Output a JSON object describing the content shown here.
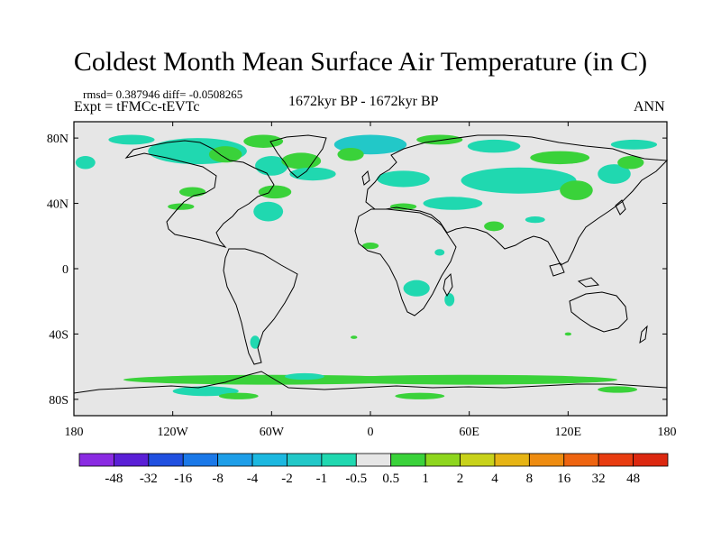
{
  "chart_data": {
    "type": "heatmap",
    "title": "Coldest Month Mean Surface Air Temperature (in C)",
    "stats_text": "rmsd= 0.387946  diff= -0.0508265",
    "experiment_text": "Expt = tFMCc-tEVTc",
    "period_text": "1672kyr BP - 1672kyr BP",
    "season_text": "ANN",
    "x_tick_labels": [
      "180",
      "120W",
      "60W",
      "0",
      "60E",
      "120E",
      "180"
    ],
    "y_tick_labels": [
      "80N",
      "40N",
      "0",
      "40S",
      "80S"
    ],
    "xlim": [
      -180,
      180
    ],
    "ylim": [
      -90,
      90
    ],
    "colorbar": {
      "levels": [
        "-48",
        "-32",
        "-16",
        "-8",
        "-4",
        "-2",
        "-1",
        "-0.5",
        "0.5",
        "1",
        "2",
        "4",
        "8",
        "16",
        "32",
        "48"
      ],
      "colors": [
        "#8a2be2",
        "#5a1fd6",
        "#2050e0",
        "#1a78e8",
        "#1e9ee8",
        "#1cb8e0",
        "#22c8c8",
        "#20d8b0",
        "#e6e6e6",
        "#3ad23a",
        "#8ed61e",
        "#c8d21a",
        "#e6b414",
        "#ee8c10",
        "#ee6410",
        "#e83c10",
        "#dc2810"
      ]
    },
    "anomaly_regions": [
      {
        "lon": -105,
        "lat": 72,
        "rlon": 30,
        "rlat": 8,
        "cls": -0.75
      },
      {
        "lon": -145,
        "lat": 79,
        "rlon": 14,
        "rlat": 3,
        "cls": -0.75
      },
      {
        "lon": -65,
        "lat": 78,
        "rlon": 12,
        "rlat": 4,
        "cls": 0.75
      },
      {
        "lon": -88,
        "lat": 70,
        "rlon": 10,
        "rlat": 5,
        "cls": 0.75
      },
      {
        "lon": -60,
        "lat": 63,
        "rlon": 10,
        "rlat": 6,
        "cls": -0.75
      },
      {
        "lon": -42,
        "lat": 66,
        "rlon": 12,
        "rlat": 5,
        "cls": 0.75
      },
      {
        "lon": -35,
        "lat": 58,
        "rlon": 14,
        "rlat": 4,
        "cls": -0.75
      },
      {
        "lon": -58,
        "lat": 47,
        "rlon": 10,
        "rlat": 4,
        "cls": 0.75
      },
      {
        "lon": 0,
        "lat": 76,
        "rlon": 22,
        "rlat": 6,
        "cls": -1.5
      },
      {
        "lon": -12,
        "lat": 70,
        "rlon": 8,
        "rlat": 4,
        "cls": 0.75
      },
      {
        "lon": 42,
        "lat": 79,
        "rlon": 14,
        "rlat": 3,
        "cls": 0.75
      },
      {
        "lon": 75,
        "lat": 75,
        "rlon": 16,
        "rlat": 4,
        "cls": -0.75
      },
      {
        "lon": 90,
        "lat": 54,
        "rlon": 35,
        "rlat": 8,
        "cls": -0.75
      },
      {
        "lon": 20,
        "lat": 55,
        "rlon": 16,
        "rlat": 5,
        "cls": -0.75
      },
      {
        "lon": 115,
        "lat": 68,
        "rlon": 18,
        "rlat": 4,
        "cls": 0.75
      },
      {
        "lon": 160,
        "lat": 76,
        "rlon": 14,
        "rlat": 3,
        "cls": -0.75
      },
      {
        "lon": 148,
        "lat": 58,
        "rlon": 10,
        "rlat": 6,
        "cls": -0.75
      },
      {
        "lon": 158,
        "lat": 65,
        "rlon": 8,
        "rlat": 4,
        "cls": 0.75
      },
      {
        "lon": 125,
        "lat": 48,
        "rlon": 10,
        "rlat": 6,
        "cls": 0.75
      },
      {
        "lon": 50,
        "lat": 40,
        "rlon": 18,
        "rlat": 4,
        "cls": -0.75
      },
      {
        "lon": 20,
        "lat": 38,
        "rlon": 8,
        "rlat": 2,
        "cls": 0.75
      },
      {
        "lon": -108,
        "lat": 47,
        "rlon": 8,
        "rlat": 3,
        "cls": 0.75
      },
      {
        "lon": -115,
        "lat": 38,
        "rlon": 8,
        "rlat": 2,
        "cls": 0.75
      },
      {
        "lon": -62,
        "lat": 35,
        "rlon": 9,
        "rlat": 6,
        "cls": -0.75
      },
      {
        "lon": -173,
        "lat": 65,
        "rlon": 6,
        "rlat": 4,
        "cls": -0.75
      },
      {
        "lon": 0,
        "lat": 14,
        "rlon": 5,
        "rlat": 2,
        "cls": 0.75
      },
      {
        "lon": 75,
        "lat": 26,
        "rlon": 6,
        "rlat": 3,
        "cls": 0.75
      },
      {
        "lon": 100,
        "lat": 30,
        "rlon": 6,
        "rlat": 2,
        "cls": -0.75
      },
      {
        "lon": 28,
        "lat": -12,
        "rlon": 8,
        "rlat": 5,
        "cls": -0.75
      },
      {
        "lon": 42,
        "lat": 10,
        "rlon": 3,
        "rlat": 2,
        "cls": -0.75
      },
      {
        "lon": 48,
        "lat": -19,
        "rlon": 3,
        "rlat": 4,
        "cls": -0.75
      },
      {
        "lon": -70,
        "lat": -45,
        "rlon": 3,
        "rlat": 4,
        "cls": -0.75
      },
      {
        "lon": -10,
        "lat": -42,
        "rlon": 2,
        "rlat": 1,
        "cls": 0.75
      },
      {
        "lon": 120,
        "lat": -40,
        "rlon": 2,
        "rlat": 1,
        "cls": 0.75
      },
      {
        "lon": -60,
        "lat": -68,
        "rlon": 90,
        "rlat": 3,
        "cls": 0.75
      },
      {
        "lon": 60,
        "lat": -68,
        "rlon": 90,
        "rlat": 3,
        "cls": 0.75
      },
      {
        "lon": -40,
        "lat": -66,
        "rlon": 12,
        "rlat": 2,
        "cls": -0.75
      },
      {
        "lon": -100,
        "lat": -75,
        "rlon": 20,
        "rlat": 3,
        "cls": -0.75
      },
      {
        "lon": -80,
        "lat": -78,
        "rlon": 12,
        "rlat": 2,
        "cls": 0.75
      },
      {
        "lon": 150,
        "lat": -74,
        "rlon": 12,
        "rlat": 2,
        "cls": 0.75
      },
      {
        "lon": 30,
        "lat": -78,
        "rlon": 15,
        "rlat": 2,
        "cls": 0.75
      }
    ]
  }
}
